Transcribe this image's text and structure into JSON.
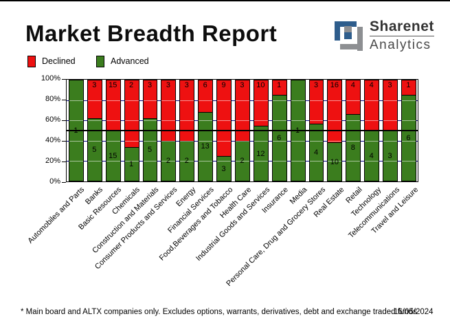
{
  "page": {
    "title": "Market Breadth Report",
    "logo": {
      "name": "Sharenet",
      "sub": "Analytics"
    },
    "footnote": "* Main board and ALTX companies only. Excludes options, warrants, derivatives, debt and exchange traded funds",
    "date": "16/05/2024"
  },
  "legend": {
    "items": [
      {
        "label": "Declined",
        "color": "#ee1111"
      },
      {
        "label": "Advanced",
        "color": "#3b7d1e"
      }
    ]
  },
  "colors": {
    "declined": "#ee1111",
    "advanced": "#3b7d1e",
    "gridline_navy": "#000080",
    "midline_black": "#000000",
    "logo_blue": "#2e5d8c",
    "logo_gray": "#8d8f92"
  },
  "chart_data": {
    "type": "bar",
    "variant": "stacked-percent-column",
    "title": "Market Breadth Report",
    "categories": [
      "Automobiles and Parts",
      "Banks",
      "Basic Resources",
      "Chemicals",
      "Construction and Materials",
      "Consumer Products and Services",
      "Energy",
      "Financial Services",
      "Food,Beverages and Tobacco",
      "Health Care",
      "Industrial Goods and Services",
      "Insurance",
      "Media",
      "Personal Care, Drug and Grocery Stores",
      "Real Estate",
      "Retail",
      "Technology",
      "Telecommunications",
      "Travel and Leisure"
    ],
    "series": [
      {
        "name": "Declined",
        "color": "#ee1111",
        "values": [
          0,
          3,
          15,
          2,
          3,
          3,
          3,
          6,
          9,
          3,
          10,
          1,
          0,
          3,
          16,
          4,
          4,
          3,
          1
        ]
      },
      {
        "name": "Advanced",
        "color": "#3b7d1e",
        "values": [
          1,
          5,
          15,
          1,
          5,
          2,
          2,
          13,
          3,
          2,
          12,
          6,
          1,
          4,
          10,
          8,
          4,
          3,
          6
        ]
      }
    ],
    "y_axis": {
      "ticks": [
        "100%",
        "80%",
        "60%",
        "40%",
        "20%",
        "0%"
      ],
      "range": [
        0,
        100
      ],
      "unit": "percent"
    },
    "gridlines_pct": [
      20,
      40,
      60,
      80
    ],
    "reference_line_pct": 50,
    "grid": true,
    "legend_position": "top-left",
    "value_labels": "counts shown inside segments; zero counts hidden"
  }
}
